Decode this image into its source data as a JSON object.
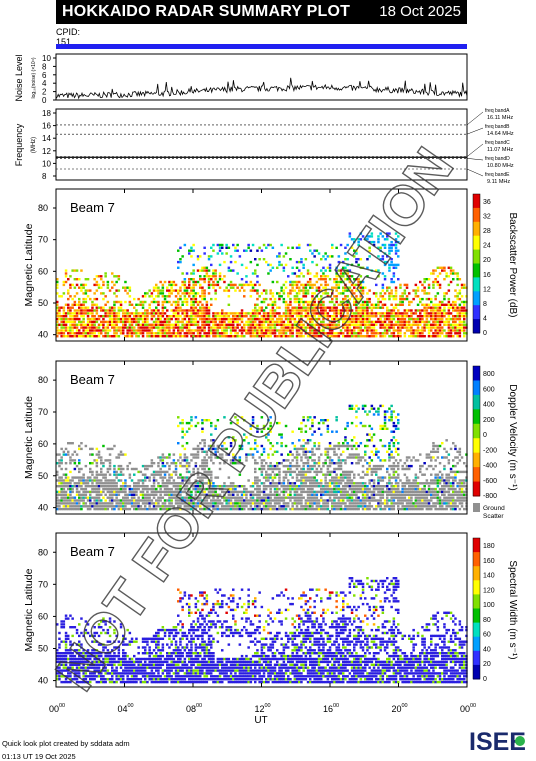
{
  "header": {
    "title": "HOKKAIDO RADAR SUMMARY PLOT",
    "date": "18 Oct 2025"
  },
  "cpid": {
    "label": "CPID:",
    "value": "151"
  },
  "noise_panel": {
    "ylabel": "Noise Level",
    "ylabel_sub": "log₁₀(noise) (×10⁴)",
    "ticks": [
      "10",
      "8",
      "6",
      "4",
      "2",
      "0"
    ]
  },
  "freq_panel": {
    "ylabel": "Frequency",
    "ylabel_sub": "(MHz)",
    "ticks": [
      "18",
      "16",
      "14",
      "12",
      "10",
      "8"
    ],
    "bands": [
      {
        "label": "freq bandA",
        "value": "16.11 MHz",
        "mhz": 16.11
      },
      {
        "label": "freq bandB",
        "value": "14.64 MHz",
        "mhz": 14.64
      },
      {
        "label": "freq bandC",
        "value": "11.07 MHz",
        "mhz": 11.07
      },
      {
        "label": "freq bandD",
        "value": "10.80 MHz",
        "mhz": 10.8
      },
      {
        "label": "freq bandE",
        "value": "9.11 MHz",
        "mhz": 9.11
      }
    ]
  },
  "panels": [
    {
      "beam": "Beam 7",
      "ylabel": "Magnetic Latitude",
      "cb_label": "Backscatter Power (dB)",
      "cb_ticks": [
        "36",
        "32",
        "28",
        "24",
        "20",
        "16",
        "12",
        "8",
        "4",
        "0"
      ],
      "kind": "power"
    },
    {
      "beam": "Beam 7",
      "ylabel": "Magnetic Latitude",
      "cb_label": "Doppler Velocity (m s⁻¹)",
      "cb_ticks": [
        "800",
        "600",
        "400",
        "200",
        "0",
        "-200",
        "-400",
        "-600",
        "-800"
      ],
      "kind": "velocity",
      "ground_label": "Ground",
      "ground_label2": "Scatter"
    },
    {
      "beam": "Beam 7",
      "ylabel": "Magnetic Latitude",
      "cb_label": "Spectral Width (m s⁻¹)",
      "cb_ticks": [
        "180",
        "160",
        "140",
        "120",
        "100",
        "80",
        "60",
        "40",
        "20",
        "0"
      ],
      "kind": "width"
    }
  ],
  "lat_ticks": [
    "80",
    "70",
    "60",
    "50",
    "40"
  ],
  "x_axis": {
    "label": "UT",
    "ticks": [
      "00",
      "04",
      "08",
      "12",
      "16",
      "20",
      "00"
    ],
    "sup": "00"
  },
  "watermark": "NOT FOR PUBLICATION",
  "footer": {
    "line1": "Quick look plot created by sddata adm",
    "line2": "01:13 UT 19 Oct 2025"
  },
  "logo": {
    "text": "ISEE"
  },
  "colors": {
    "power_scale": [
      "#0000b0",
      "#3030ff",
      "#00a0ff",
      "#00e0c0",
      "#00c000",
      "#80e000",
      "#ffff00",
      "#ffb000",
      "#ff6000",
      "#e00000"
    ],
    "velocity_scale": [
      "#e00000",
      "#ff6000",
      "#ffb000",
      "#ffff00",
      "#80e000",
      "#00c000",
      "#00c0a0",
      "#0080ff",
      "#0000c0"
    ],
    "ground": "#909090",
    "accent": "#2020f0"
  },
  "chart_data": [
    {
      "type": "line",
      "title": "Noise Level",
      "ylabel": "Noise Level",
      "xlabel": "",
      "ylim": [
        0,
        10
      ],
      "xlim_hours": [
        0,
        24
      ],
      "x": [
        0,
        2,
        4,
        6,
        8,
        10,
        12,
        14,
        16,
        18,
        20,
        22,
        24
      ],
      "series": [
        {
          "values": [
            0.5,
            0.6,
            0.8,
            1.0,
            1.5,
            2.0,
            2.2,
            2.4,
            2.5,
            2.2,
            1.8,
            1.2,
            1.0
          ]
        }
      ]
    },
    {
      "type": "line",
      "title": "Frequency",
      "ylabel": "Frequency",
      "ylim": [
        8,
        18
      ],
      "x": [
        0,
        24
      ],
      "series": [
        {
          "values": [
            11.07,
            11.07
          ]
        }
      ]
    },
    {
      "type": "heatmap",
      "title": "",
      "ylabel": "Magnetic Latitude",
      "xlabel": "UT",
      "ylim": [
        38,
        86
      ],
      "xlim_hours": [
        0,
        24
      ],
      "colorbar": "Backscatter Power (dB)",
      "crange": [
        0,
        38
      ]
    },
    {
      "type": "heatmap",
      "title": "",
      "ylabel": "Magnetic Latitude",
      "xlabel": "UT",
      "ylim": [
        38,
        86
      ],
      "xlim_hours": [
        0,
        24
      ],
      "colorbar": "Doppler Velocity (m s⁻¹)",
      "crange": [
        -900,
        900
      ]
    },
    {
      "type": "heatmap",
      "title": "",
      "ylabel": "Magnetic Latitude",
      "xlabel": "UT",
      "ylim": [
        38,
        86
      ],
      "xlim_hours": [
        0,
        24
      ],
      "colorbar": "Spectral Width (m s⁻¹)",
      "crange": [
        0,
        190
      ]
    }
  ]
}
